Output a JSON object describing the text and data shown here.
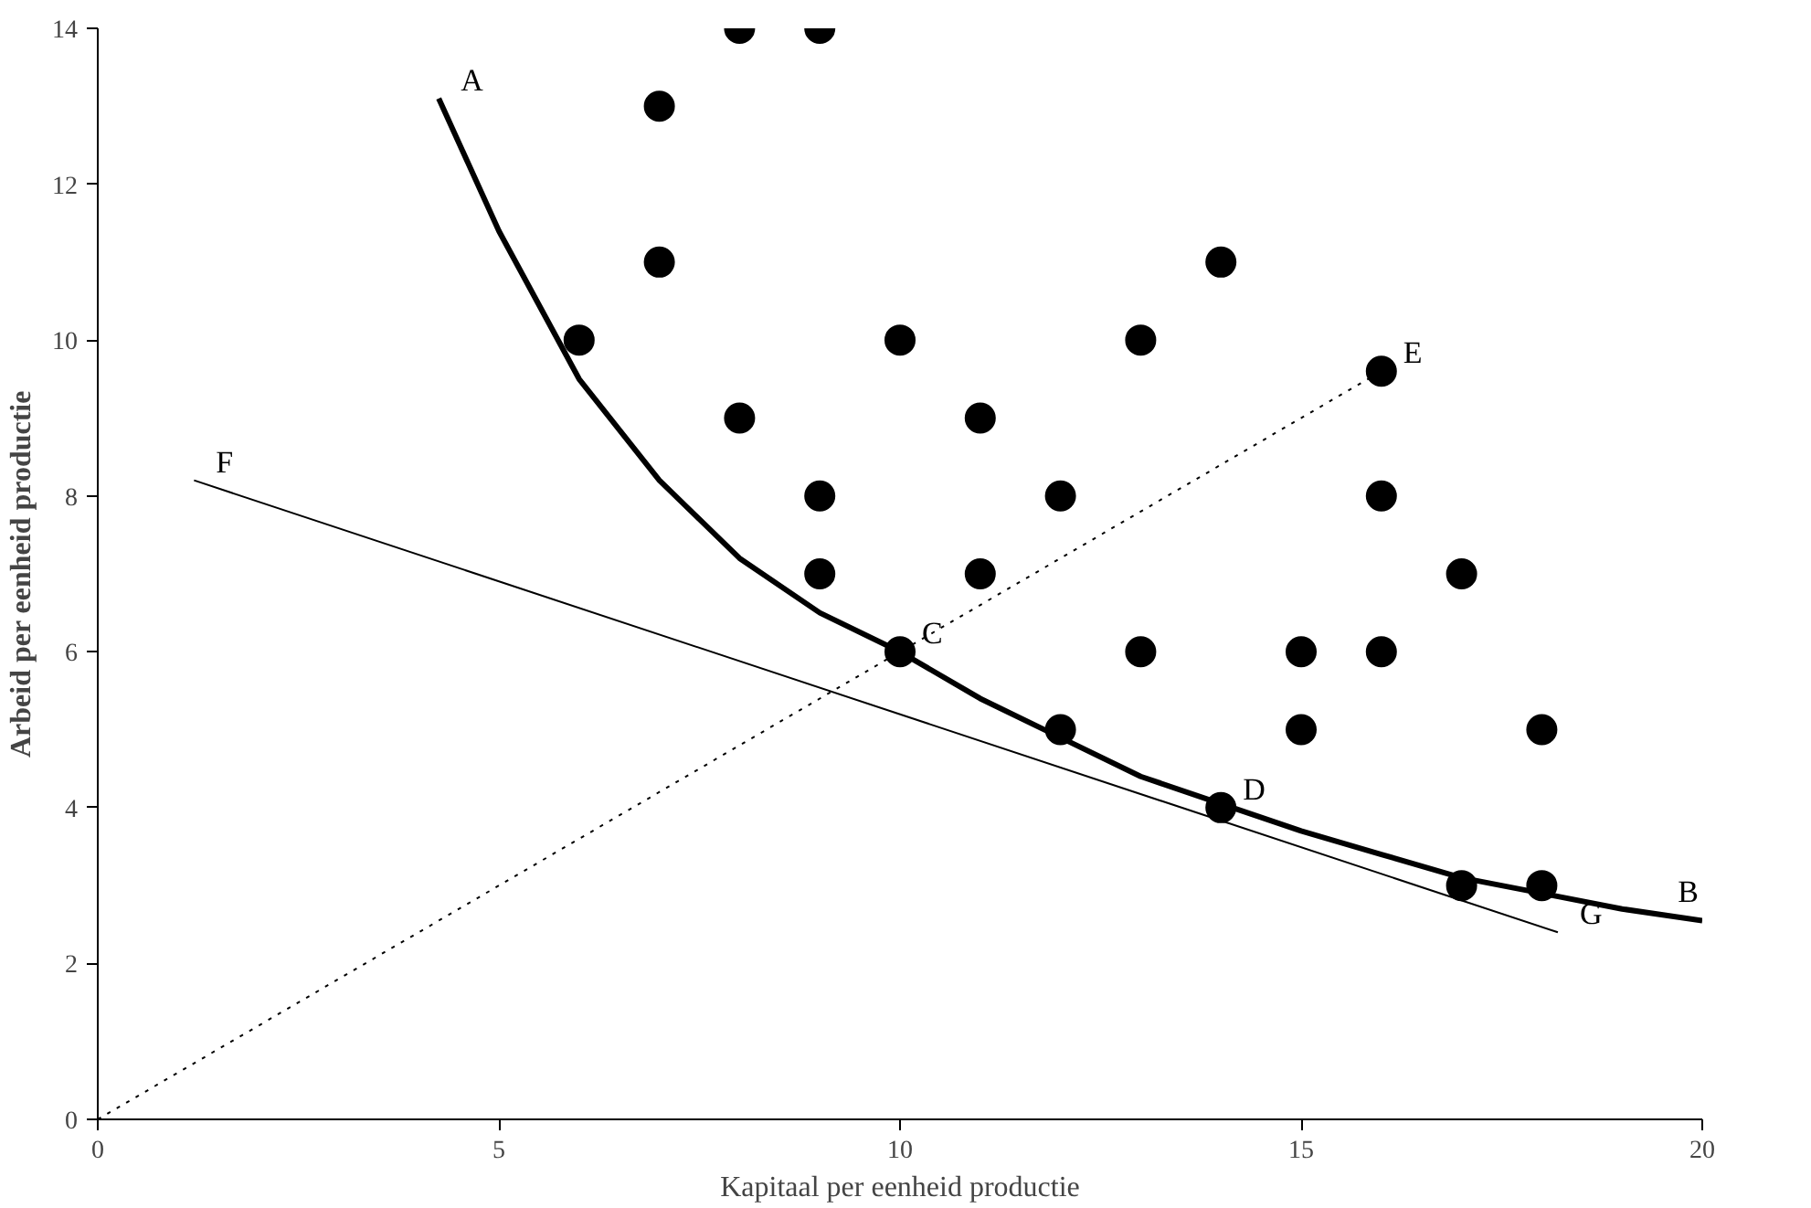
{
  "chart_data": {
    "type": "scatter",
    "xlabel": "Kapitaal per eenheid productie",
    "ylabel": "Arbeid per eenheid productie",
    "xlim": [
      0,
      20
    ],
    "ylim": [
      0,
      14
    ],
    "xticks": [
      0,
      5,
      10,
      15,
      20
    ],
    "yticks": [
      0,
      2,
      4,
      6,
      8,
      10,
      12,
      14
    ],
    "grid": false,
    "series": [
      {
        "color": "#000000",
        "marker": "circle",
        "x": [
          6,
          7,
          7,
          8,
          9,
          8,
          9,
          9,
          10,
          10,
          11,
          11,
          12,
          12,
          13,
          13,
          14,
          14,
          15,
          15,
          16,
          16,
          16,
          17,
          17,
          18,
          18
        ],
        "values": [
          10,
          13,
          11,
          14,
          14,
          9,
          8,
          7,
          10,
          6,
          9,
          7,
          8,
          5,
          10,
          6,
          11,
          4,
          6,
          5,
          9.6,
          8,
          6,
          7,
          3,
          5,
          3
        ]
      },
      {
        "type": "line",
        "color": "#000000",
        "line_style": "solid",
        "marker": "none",
        "x": [
          4.25,
          5,
          6,
          7,
          8,
          9,
          10,
          11,
          12,
          13,
          14,
          15,
          16,
          17,
          18,
          19,
          20
        ],
        "values": [
          13.1,
          11.4,
          9.5,
          8.2,
          7.2,
          6.5,
          6.0,
          5.4,
          4.9,
          4.4,
          4.05,
          3.7,
          3.4,
          3.1,
          2.9,
          2.7,
          2.55
        ]
      },
      {
        "type": "line",
        "color": "#000000",
        "line_style": "solid",
        "marker": "none",
        "x": [
          1.2,
          18.2
        ],
        "values": [
          8.2,
          2.4
        ]
      },
      {
        "type": "line",
        "color": "#000000",
        "line_style": "dotted",
        "marker": "none",
        "x": [
          0,
          16
        ],
        "values": [
          0,
          9.6
        ]
      }
    ],
    "annotations": [
      {
        "text": "A",
        "x": 4.25,
        "y": 13.1
      },
      {
        "text": "B",
        "x": 20,
        "y": 2.55
      },
      {
        "text": "C",
        "x": 10,
        "y": 6
      },
      {
        "text": "D",
        "x": 14,
        "y": 4
      },
      {
        "text": "E",
        "x": 16,
        "y": 9.6
      },
      {
        "text": "F",
        "x": 1.2,
        "y": 8.2
      },
      {
        "text": "G",
        "x": 18.2,
        "y": 2.4
      }
    ]
  }
}
